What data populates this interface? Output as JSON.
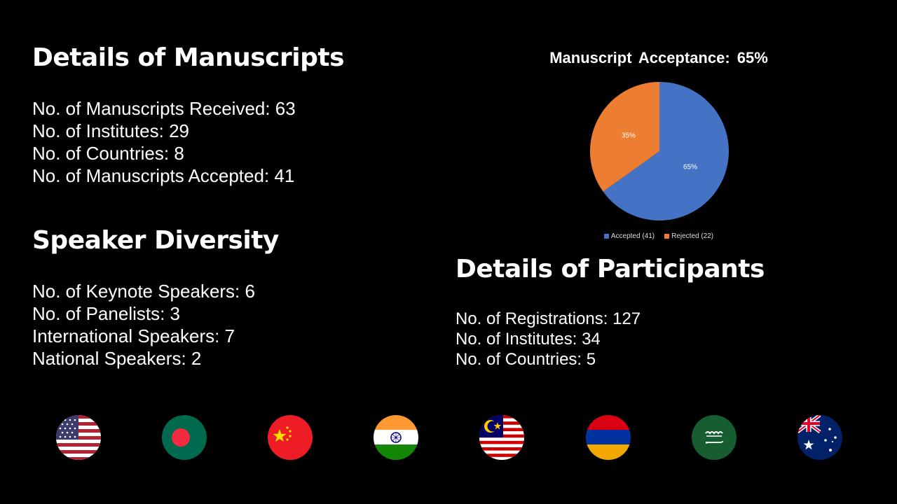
{
  "manuscripts": {
    "heading": "Details of Manuscripts",
    "lines": [
      "No. of Manuscripts Received: 63",
      "No. of Institutes: 29",
      "No. of Countries: 8",
      "No. of Manuscripts Accepted: 41"
    ]
  },
  "speakers": {
    "heading": "Speaker Diversity",
    "lines": [
      "No. of Keynote Speakers: 6",
      "No. of Panelists: 3",
      "International Speakers: 7",
      "National Speakers: 2"
    ]
  },
  "participants": {
    "heading": "Details of Participants",
    "lines": [
      "No. of Registrations: 127",
      "No. of Institutes: 34",
      "No. of Countries: 5"
    ]
  },
  "chart_data": {
    "type": "pie",
    "title": "Manuscript Acceptance: 65%",
    "slices": [
      {
        "label": "Accepted (41)",
        "value": 41,
        "percent_label": "65%",
        "color": "#4472C4"
      },
      {
        "label": "Rejected (22)",
        "value": 22,
        "percent_label": "35%",
        "color": "#ED7D31"
      }
    ],
    "legend_position": "bottom"
  },
  "flags": [
    "usa-flag-icon",
    "bangladesh-flag-icon",
    "china-flag-icon",
    "india-flag-icon",
    "malaysia-flag-icon",
    "armenia-flag-icon",
    "saudi-arabia-flag-icon",
    "australia-flag-icon"
  ]
}
